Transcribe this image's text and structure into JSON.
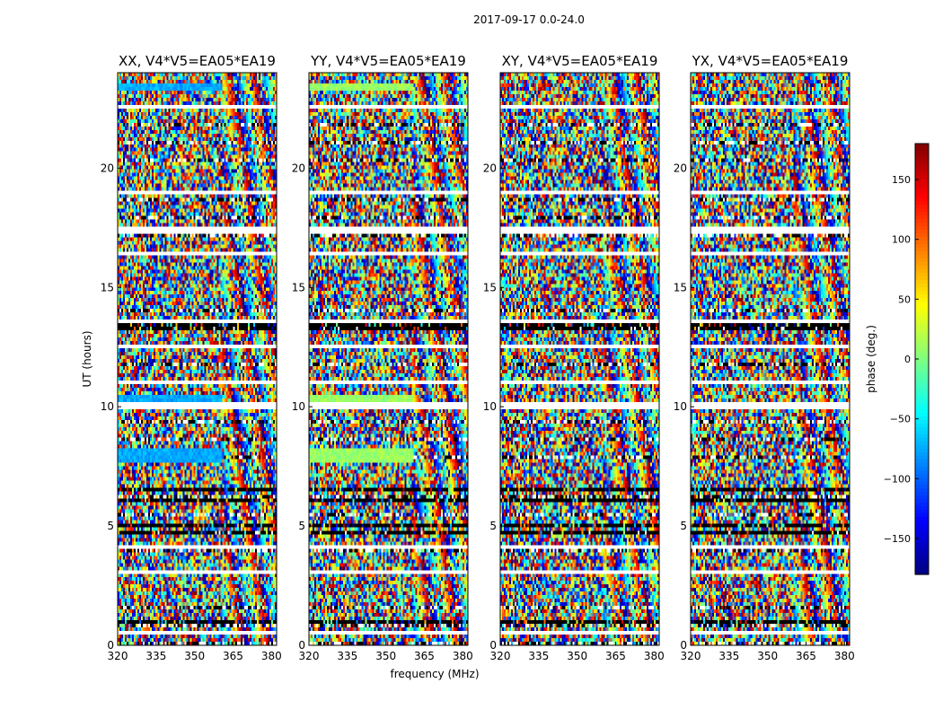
{
  "chart_data": {
    "type": "heatmap",
    "title": "2017-09-17 0.0-24.0",
    "xlabel": "frequency (MHz)",
    "ylabel": "UT (hours)",
    "xlim": [
      320,
      382
    ],
    "ylim": [
      0,
      24
    ],
    "xticks": [
      320,
      335,
      350,
      365,
      380
    ],
    "yticks": [
      0,
      5,
      10,
      15,
      20
    ],
    "panels": [
      {
        "name": "XX",
        "title": "XX, V4*V5=EA05*EA19",
        "show_yticks": true,
        "coherent": true,
        "base_phase": -75
      },
      {
        "name": "YY",
        "title": "YY, V4*V5=EA05*EA19",
        "show_yticks": true,
        "coherent": true,
        "base_phase": 10
      },
      {
        "name": "XY",
        "title": "XY, V4*V5=EA05*EA19",
        "show_yticks": true,
        "coherent": false,
        "base_phase": 0
      },
      {
        "name": "YX",
        "title": "YX, V4*V5=EA05*EA19",
        "show_yticks": true,
        "coherent": false,
        "base_phase": 0
      }
    ],
    "colorbar": {
      "label": "phase (deg.)",
      "min": -180,
      "max": 180,
      "ticks": [
        -150,
        -100,
        -50,
        0,
        50,
        100,
        150
      ],
      "tick_labels": [
        "−150",
        "−100",
        "−50",
        "0",
        "50",
        "100",
        "150"
      ],
      "colormap": "jet"
    },
    "flagged_hours": [
      [
        0.5,
        0.6
      ],
      [
        3.0,
        3.1
      ],
      [
        4.1,
        4.2
      ],
      [
        9.85,
        10.2
      ],
      [
        11.0,
        11.05
      ],
      [
        12.5,
        12.6
      ],
      [
        13.55,
        13.65
      ],
      [
        16.4,
        16.55
      ],
      [
        17.3,
        17.6
      ],
      [
        18.95,
        19.0
      ],
      [
        22.5,
        22.6
      ],
      [
        23.05,
        23.15
      ],
      [
        23.55,
        23.6
      ]
    ],
    "dark_bands_hours": [
      [
        0.9,
        1.0
      ],
      [
        2.25,
        2.3
      ],
      [
        4.7,
        4.8
      ],
      [
        5.0,
        5.1
      ],
      [
        5.5,
        5.6
      ],
      [
        6.45,
        6.55
      ],
      [
        6.0,
        6.1
      ],
      [
        13.15,
        13.3
      ],
      [
        13.4,
        13.5
      ]
    ],
    "coherent_blocks": [
      {
        "panel": "XX",
        "t": [
          23.2,
          23.55
        ],
        "f": [
          320,
          361
        ]
      },
      {
        "panel": "XX",
        "t": [
          10.2,
          10.55
        ],
        "f": [
          320,
          361
        ]
      },
      {
        "panel": "XX",
        "t": [
          7.7,
          8.2
        ],
        "f": [
          320,
          361
        ]
      },
      {
        "panel": "YY",
        "t": [
          23.2,
          23.55
        ],
        "f": [
          320,
          361
        ]
      },
      {
        "panel": "YY",
        "t": [
          10.2,
          10.55
        ],
        "f": [
          320,
          361
        ]
      },
      {
        "panel": "YY",
        "t": [
          7.7,
          8.2
        ],
        "f": [
          320,
          361
        ]
      }
    ]
  }
}
